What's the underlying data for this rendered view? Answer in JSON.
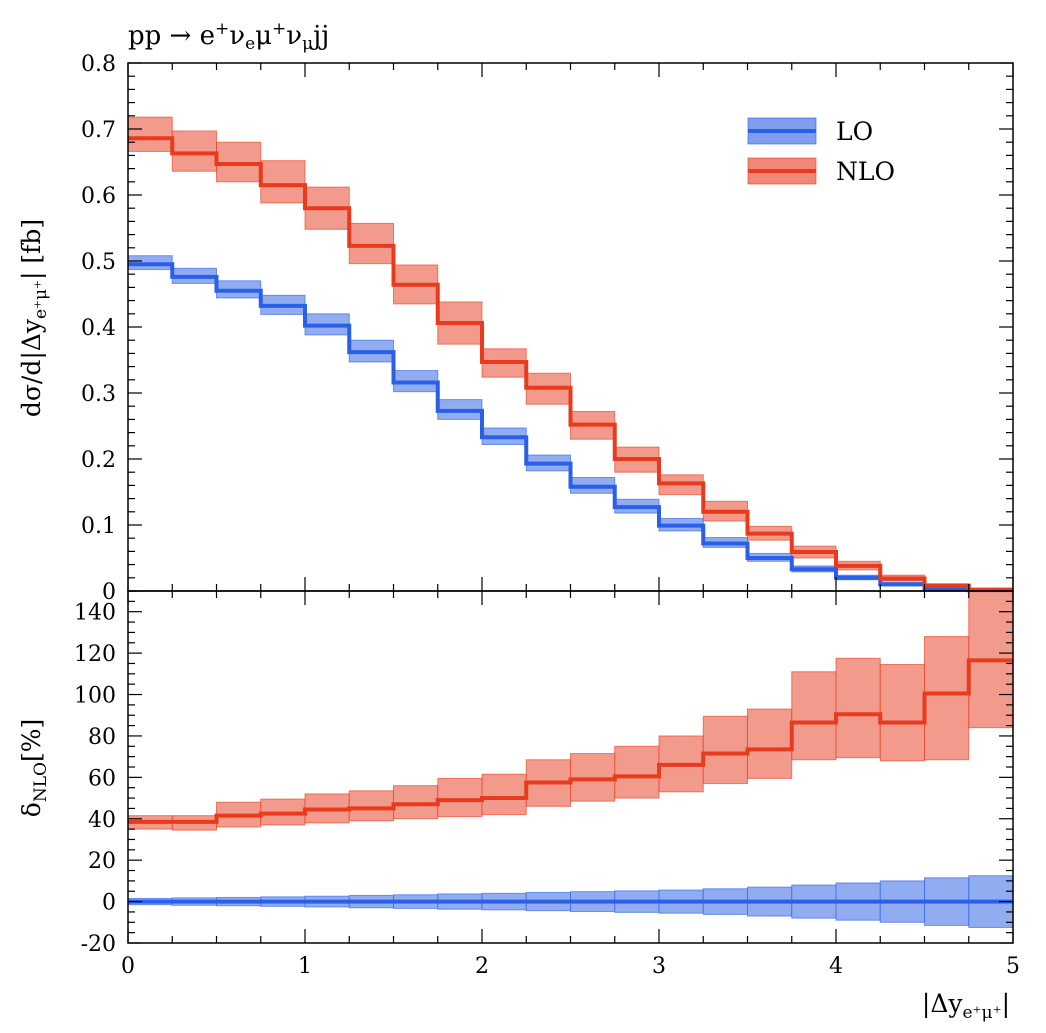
{
  "chart_data": [
    {
      "panel": "main",
      "type": "line",
      "step": true,
      "title": "pp → e⁺νₑμ⁺ν_μjj",
      "xlabel": "",
      "ylabel": "dσ/d|Δy_e⁺μ⁺| [fb]",
      "xlim": [
        0,
        5
      ],
      "ylim": [
        0,
        0.8
      ],
      "xticks": [
        "0",
        "1",
        "2",
        "3",
        "4",
        "5"
      ],
      "yticks": [
        "0",
        "0.1",
        "0.2",
        "0.3",
        "0.4",
        "0.5",
        "0.6",
        "0.7",
        "0.8"
      ],
      "legend_position": "top-right",
      "bin_edges": [
        0,
        0.25,
        0.5,
        0.75,
        1.0,
        1.25,
        1.5,
        1.75,
        2.0,
        2.25,
        2.5,
        2.75,
        3.0,
        3.25,
        3.5,
        3.75,
        4.0,
        4.25,
        4.5,
        4.75,
        5.0
      ],
      "series": [
        {
          "name": "LO",
          "color": "#2a5fe8",
          "band_color": "#7f9ef0",
          "values": [
            0.495,
            0.476,
            0.455,
            0.432,
            0.402,
            0.362,
            0.316,
            0.273,
            0.233,
            0.193,
            0.158,
            0.127,
            0.099,
            0.072,
            0.05,
            0.033,
            0.02,
            0.01,
            0.004,
            0.001
          ],
          "band_low": [
            0.487,
            0.466,
            0.444,
            0.419,
            0.388,
            0.347,
            0.302,
            0.26,
            0.222,
            0.182,
            0.148,
            0.118,
            0.091,
            0.066,
            0.045,
            0.029,
            0.017,
            0.008,
            0.003,
            0.001
          ],
          "band_high": [
            0.508,
            0.489,
            0.47,
            0.448,
            0.42,
            0.38,
            0.334,
            0.29,
            0.247,
            0.206,
            0.172,
            0.139,
            0.11,
            0.081,
            0.057,
            0.038,
            0.024,
            0.013,
            0.006,
            0.002
          ]
        },
        {
          "name": "NLO",
          "color": "#e83a1c",
          "band_color": "#f08878",
          "values": [
            0.686,
            0.663,
            0.647,
            0.615,
            0.58,
            0.523,
            0.464,
            0.406,
            0.347,
            0.308,
            0.252,
            0.2,
            0.163,
            0.12,
            0.087,
            0.059,
            0.038,
            0.019,
            0.008,
            0.002
          ],
          "band_low": [
            0.666,
            0.636,
            0.62,
            0.588,
            0.548,
            0.496,
            0.435,
            0.374,
            0.324,
            0.283,
            0.23,
            0.18,
            0.146,
            0.106,
            0.077,
            0.05,
            0.032,
            0.015,
            0.006,
            0.001
          ],
          "band_high": [
            0.718,
            0.697,
            0.68,
            0.652,
            0.612,
            0.557,
            0.494,
            0.438,
            0.367,
            0.33,
            0.272,
            0.218,
            0.176,
            0.136,
            0.098,
            0.068,
            0.045,
            0.024,
            0.011,
            0.004
          ]
        }
      ]
    },
    {
      "panel": "ratio",
      "type": "line",
      "step": true,
      "xlabel": "|Δy_e⁺μ⁺|",
      "ylabel": "δ_NLO[%]",
      "xlim": [
        0,
        5
      ],
      "ylim": [
        -20,
        150
      ],
      "xticks": [
        "0",
        "1",
        "2",
        "3",
        "4",
        "5"
      ],
      "yticks": [
        "-20",
        "0",
        "20",
        "40",
        "60",
        "80",
        "100",
        "120",
        "140"
      ],
      "bin_edges": [
        0,
        0.25,
        0.5,
        0.75,
        1.0,
        1.25,
        1.5,
        1.75,
        2.0,
        2.25,
        2.5,
        2.75,
        3.0,
        3.25,
        3.5,
        3.75,
        4.0,
        4.25,
        4.5,
        4.75,
        5.0
      ],
      "series": [
        {
          "name": "LO",
          "color": "#2a5fe8",
          "band_color": "#7f9ef0",
          "values": [
            0,
            0,
            0,
            0,
            0,
            0,
            0,
            0,
            0,
            0,
            0,
            0,
            0,
            0,
            0,
            0,
            0,
            0,
            0,
            0
          ],
          "band_low": [
            -1.5,
            -1.8,
            -2.0,
            -2.3,
            -2.6,
            -3.0,
            -3.3,
            -3.7,
            -4.0,
            -4.4,
            -4.8,
            -5.2,
            -5.6,
            -6.2,
            -7.0,
            -8.0,
            -9.0,
            -10.0,
            -11.5,
            -12.5
          ],
          "band_high": [
            1.5,
            1.8,
            2.0,
            2.3,
            2.6,
            3.0,
            3.3,
            3.7,
            4.0,
            4.4,
            4.8,
            5.2,
            5.6,
            6.2,
            7.0,
            8.0,
            9.0,
            10.0,
            11.5,
            12.5
          ]
        },
        {
          "name": "NLO",
          "color": "#e83a1c",
          "band_color": "#f08878",
          "values": [
            38.5,
            38.5,
            41.5,
            42.5,
            44.5,
            45.0,
            47.0,
            49.0,
            50.0,
            57.5,
            59.0,
            60.5,
            66.0,
            71.5,
            73.5,
            86.5,
            90.5,
            86.5,
            100.5,
            116.5
          ],
          "band_low": [
            35.0,
            34.5,
            36.0,
            37.0,
            38.0,
            39.0,
            40.0,
            41.0,
            42.0,
            46.0,
            48.5,
            50.0,
            53.0,
            57.0,
            59.5,
            68.5,
            69.5,
            68.0,
            68.5,
            84.0
          ],
          "band_high": [
            41.5,
            41.5,
            48.0,
            49.5,
            52.0,
            53.5,
            56.0,
            59.5,
            61.5,
            68.5,
            71.5,
            75.0,
            80.0,
            89.5,
            93.0,
            111.0,
            117.5,
            114.5,
            128.0,
            150.0
          ]
        }
      ]
    }
  ]
}
